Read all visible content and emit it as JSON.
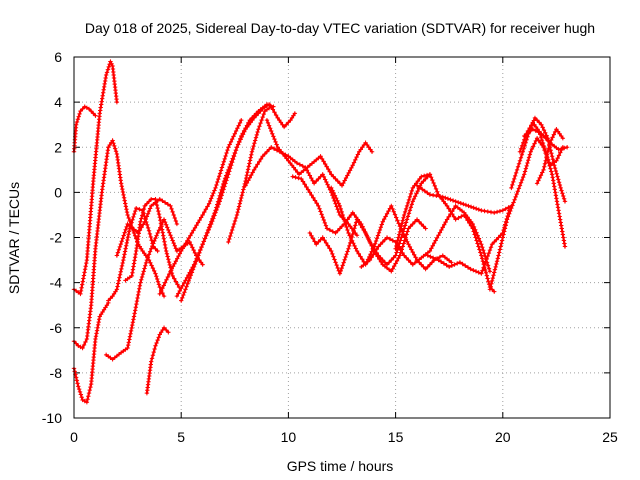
{
  "chart_data": {
    "type": "scatter",
    "title": "Day 018 of 2025, Sidereal Day-to-day VTEC variation (SDTVAR) for receiver hugh",
    "xlabel": "GPS time / hours",
    "ylabel": "SDTVAR / TECUs",
    "xlim": [
      0,
      25
    ],
    "ylim": [
      -10,
      6
    ],
    "xticks": [
      0,
      5,
      10,
      15,
      20,
      25
    ],
    "yticks": [
      -10,
      -8,
      -6,
      -4,
      -2,
      0,
      2,
      4,
      6
    ],
    "grid": true,
    "legend": "none",
    "marker": "+",
    "series_color": "#ff0000",
    "series": [
      {
        "x": [
          0.0,
          0.1,
          0.3,
          0.5,
          0.7,
          0.9,
          1.0
        ],
        "y": [
          1.8,
          3.0,
          3.6,
          3.8,
          3.7,
          3.5,
          3.4
        ]
      },
      {
        "x": [
          0.0,
          0.3,
          0.6,
          0.9,
          1.2,
          1.5,
          1.7,
          1.8,
          1.9,
          2.0
        ],
        "y": [
          -4.3,
          -4.5,
          -3.0,
          0.5,
          3.5,
          5.2,
          5.8,
          5.6,
          4.8,
          4.0
        ]
      },
      {
        "x": [
          0.0,
          0.2,
          0.4,
          0.6,
          0.8,
          1.0,
          1.3,
          1.6,
          1.8,
          2.0,
          2.2,
          2.5,
          2.8,
          3.0,
          3.2,
          3.5,
          3.8,
          4.0,
          4.2
        ],
        "y": [
          -6.6,
          -6.8,
          -6.9,
          -6.5,
          -5.0,
          -2.5,
          0.0,
          2.0,
          2.3,
          1.7,
          0.4,
          -1.0,
          -1.8,
          -2.3,
          -2.6,
          -3.0,
          -3.6,
          -4.2,
          -4.6
        ]
      },
      {
        "x": [
          0.0,
          0.2,
          0.4,
          0.6,
          0.8,
          1.0,
          1.2,
          1.4,
          1.6
        ],
        "y": [
          -7.8,
          -8.6,
          -9.2,
          -9.3,
          -8.5,
          -6.5,
          -5.5,
          -5.2,
          -4.9
        ]
      },
      {
        "x": [
          1.5,
          1.8,
          2.2,
          2.5,
          2.8,
          3.1,
          3.4,
          3.6,
          3.9,
          4.2,
          4.5,
          4.8,
          5.1,
          5.4,
          5.7,
          6.0
        ],
        "y": [
          -7.2,
          -7.4,
          -7.1,
          -6.9,
          -5.5,
          -4.0,
          -3.0,
          -2.5,
          -1.8,
          -1.2,
          -1.9,
          -2.6,
          -2.4,
          -2.2,
          -2.8,
          -3.2
        ]
      },
      {
        "x": [
          1.6,
          1.8,
          2.0,
          2.3,
          2.6,
          2.9,
          3.2,
          3.5,
          3.7,
          3.9
        ],
        "y": [
          -4.8,
          -4.6,
          -4.3,
          -3.0,
          -1.6,
          -0.7,
          -0.8,
          -1.7,
          -2.4,
          -2.6
        ]
      },
      {
        "x": [
          2.4,
          2.7,
          2.9,
          3.1,
          3.3,
          3.6,
          3.8,
          4.0,
          4.3,
          4.6,
          4.9
        ],
        "y": [
          -3.9,
          -3.7,
          -2.6,
          -1.3,
          -0.6,
          -0.3,
          -0.3,
          -1.1,
          -2.6,
          -3.7,
          -4.2
        ]
      },
      {
        "x": [
          3.4,
          3.6,
          3.8,
          4.0,
          4.2,
          4.4
        ],
        "y": [
          -8.9,
          -7.5,
          -6.8,
          -6.3,
          -6.0,
          -6.2
        ]
      },
      {
        "x": [
          2.0,
          2.5,
          3.0,
          3.3,
          3.6,
          4.0,
          4.5,
          4.8
        ],
        "y": [
          -2.8,
          -1.4,
          -1.8,
          -1.3,
          -0.6,
          -0.3,
          -0.6,
          -1.4
        ]
      },
      {
        "x": [
          4.0,
          4.5,
          5.0,
          5.5,
          6.0,
          6.3,
          6.6,
          6.9,
          7.2,
          7.5,
          7.8
        ],
        "y": [
          -4.5,
          -3.5,
          -2.6,
          -1.8,
          -1.0,
          -0.5,
          0.2,
          1.1,
          2.0,
          2.6,
          3.2
        ]
      },
      {
        "x": [
          5.0,
          5.4,
          5.8,
          6.2,
          6.6,
          7.0,
          7.4,
          7.8,
          8.2,
          8.6,
          9.0,
          9.3
        ],
        "y": [
          -4.8,
          -3.8,
          -2.8,
          -1.8,
          -0.8,
          0.5,
          1.5,
          2.5,
          3.2,
          3.6,
          3.9,
          3.8
        ]
      },
      {
        "x": [
          4.8,
          5.2,
          5.6,
          6.0,
          6.4,
          6.8,
          7.2,
          7.6,
          8.0,
          8.4,
          8.8,
          9.1
        ],
        "y": [
          -4.6,
          -3.9,
          -3.2,
          -2.3,
          -1.4,
          -0.4,
          0.8,
          2.0,
          2.8,
          3.3,
          3.7,
          3.9
        ]
      },
      {
        "x": [
          7.2,
          7.6,
          8.0,
          8.3,
          8.6,
          8.9,
          9.2,
          9.5,
          9.8,
          10.1,
          10.3
        ],
        "y": [
          -2.2,
          -1.0,
          0.5,
          1.8,
          2.8,
          3.6,
          3.8,
          3.3,
          2.9,
          3.2,
          3.5
        ]
      },
      {
        "x": [
          8.0,
          8.4,
          8.8,
          9.2,
          9.6,
          10.0,
          10.4,
          10.8,
          11.2,
          11.6,
          12.0,
          12.4,
          12.8,
          13.2
        ],
        "y": [
          0.3,
          1.0,
          1.6,
          2.0,
          1.8,
          1.6,
          1.3,
          1.1,
          0.4,
          0.8,
          0.0,
          -1.0,
          -1.4,
          -1.9
        ]
      },
      {
        "x": [
          9.0,
          9.5,
          10.0,
          10.5,
          11.0,
          11.5,
          12.0,
          12.5,
          13.0,
          13.3,
          13.6,
          13.9
        ],
        "y": [
          3.2,
          2.0,
          1.4,
          0.8,
          1.2,
          1.6,
          0.8,
          0.3,
          1.2,
          1.8,
          2.2,
          1.8
        ]
      },
      {
        "x": [
          10.2,
          10.6,
          11.0,
          11.4,
          11.8,
          12.2,
          12.6,
          13.0,
          13.4,
          13.8,
          14.2,
          14.6,
          15.0,
          15.4,
          15.8,
          16.2,
          16.6
        ],
        "y": [
          0.7,
          0.6,
          0.0,
          -0.6,
          -1.6,
          -1.8,
          -1.4,
          -0.9,
          -1.4,
          -2.2,
          -2.8,
          -3.2,
          -2.8,
          -1.6,
          -0.4,
          0.4,
          0.8
        ]
      },
      {
        "x": [
          11.0,
          11.3,
          11.6,
          12.0,
          12.4,
          12.8,
          13.2,
          13.6,
          14.0,
          14.4,
          14.8,
          15.2,
          15.6,
          16.0,
          16.4
        ],
        "y": [
          -1.8,
          -2.3,
          -2.0,
          -2.6,
          -3.6,
          -2.5,
          -1.2,
          -1.8,
          -2.6,
          -3.2,
          -3.5,
          -2.8,
          -1.6,
          -1.2,
          -1.6
        ]
      },
      {
        "x": [
          12.0,
          12.4,
          12.8,
          13.2,
          13.6,
          14.0,
          14.4,
          14.8,
          15.2,
          15.6,
          16.0,
          16.4,
          16.8,
          17.2,
          17.6
        ],
        "y": [
          0.2,
          -0.6,
          -1.8,
          -2.6,
          -3.2,
          -2.4,
          -1.3,
          -0.6,
          -1.5,
          -2.3,
          -3.0,
          -3.4,
          -3.0,
          -2.8,
          -3.1
        ]
      },
      {
        "x": [
          13.4,
          13.8,
          14.2,
          14.6,
          15.0,
          15.4,
          15.8,
          16.2,
          16.6,
          17.0,
          17.4,
          17.8,
          18.2,
          18.6,
          19.0,
          19.4
        ],
        "y": [
          -3.3,
          -3.0,
          -2.4,
          -2.0,
          -2.2,
          -2.8,
          -3.2,
          -2.9,
          -2.6,
          -1.9,
          -1.2,
          -0.6,
          -0.9,
          -1.4,
          -2.3,
          -3.5
        ]
      },
      {
        "x": [
          15.0,
          15.4,
          15.8,
          16.2,
          16.6,
          17.0,
          17.4,
          17.8,
          18.2,
          18.6,
          19.0,
          19.4,
          19.6
        ],
        "y": [
          -2.5,
          -1.0,
          0.2,
          0.7,
          0.8,
          -0.1,
          -0.6,
          -1.2,
          -1.0,
          -1.6,
          -2.8,
          -4.2,
          -4.4
        ]
      },
      {
        "x": [
          16.5,
          17.0,
          17.5,
          18.0,
          18.5,
          19.0,
          19.5,
          20.0,
          20.3
        ],
        "y": [
          -2.8,
          -3.0,
          -3.3,
          -3.1,
          -3.4,
          -3.6,
          -2.3,
          -1.8,
          -0.8
        ]
      },
      {
        "x": [
          16.0,
          16.6,
          17.2,
          17.8,
          18.4,
          19.0,
          19.6,
          20.0,
          20.4
        ],
        "y": [
          0.3,
          -0.1,
          -0.2,
          -0.4,
          -0.6,
          -0.8,
          -0.9,
          -0.8,
          -0.6
        ]
      },
      {
        "x": [
          19.4,
          19.8,
          20.2,
          20.6,
          21.0,
          21.3,
          21.6,
          21.9,
          22.2,
          22.5,
          22.8
        ],
        "y": [
          -4.3,
          -2.8,
          -1.2,
          -0.2,
          0.8,
          1.8,
          2.4,
          2.0,
          1.2,
          1.4,
          2.0
        ]
      },
      {
        "x": [
          20.4,
          20.8,
          21.2,
          21.5,
          21.8,
          22.1,
          22.4,
          22.7,
          22.9
        ],
        "y": [
          0.2,
          1.4,
          2.6,
          3.3,
          3.0,
          2.4,
          1.2,
          0.2,
          -0.4
        ]
      },
      {
        "x": [
          20.8,
          21.1,
          21.4,
          21.7,
          22.0,
          22.3,
          22.6,
          22.9
        ],
        "y": [
          1.8,
          2.6,
          3.1,
          2.7,
          1.8,
          0.8,
          -0.8,
          -2.4
        ]
      },
      {
        "x": [
          21.0,
          21.4,
          21.8,
          22.2,
          22.6,
          23.0
        ],
        "y": [
          2.5,
          2.8,
          2.6,
          2.2,
          1.9,
          2.0
        ]
      },
      {
        "x": [
          21.6,
          21.9,
          22.2,
          22.5,
          22.8
        ],
        "y": [
          0.4,
          1.0,
          2.2,
          2.8,
          2.4
        ]
      }
    ]
  }
}
